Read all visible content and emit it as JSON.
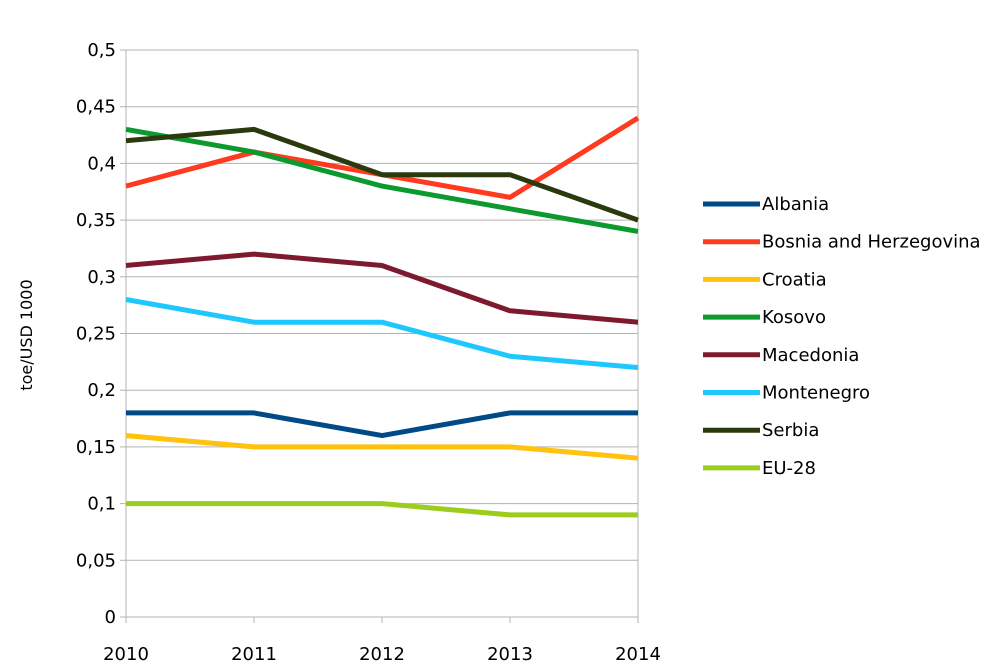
{
  "chart_data": {
    "type": "line",
    "title": "",
    "xlabel": "",
    "ylabel": "toe/USD 1000",
    "ylim": [
      0,
      0.5
    ],
    "ytick_step": 0.05,
    "ytick_labels": [
      "0",
      "0,05",
      "0,1",
      "0,15",
      "0,2",
      "0,25",
      "0,3",
      "0,35",
      "0,4",
      "0,45",
      "0,5"
    ],
    "categories": [
      "2010",
      "2011",
      "2012",
      "2013",
      "2014"
    ],
    "grid": true,
    "legend_position": "right",
    "series": [
      {
        "name": "Albania",
        "color": "#004a87",
        "values": [
          0.18,
          0.18,
          0.16,
          0.18,
          0.18
        ]
      },
      {
        "name": "Bosnia and Herzegovina",
        "color": "#ff3a1e",
        "values": [
          0.38,
          0.41,
          0.39,
          0.37,
          0.44
        ]
      },
      {
        "name": "Croatia",
        "color": "#ffc20e",
        "values": [
          0.16,
          0.15,
          0.15,
          0.15,
          0.14
        ]
      },
      {
        "name": "Kosovo",
        "color": "#0c9a2e",
        "values": [
          0.43,
          0.41,
          0.38,
          0.36,
          0.34
        ]
      },
      {
        "name": "Macedonia",
        "color": "#7d1a2e",
        "values": [
          0.31,
          0.32,
          0.31,
          0.27,
          0.26
        ]
      },
      {
        "name": "Montenegro",
        "color": "#1ec8ff",
        "values": [
          0.28,
          0.26,
          0.26,
          0.23,
          0.22
        ]
      },
      {
        "name": "Serbia",
        "color": "#2b3a0e",
        "values": [
          0.42,
          0.43,
          0.39,
          0.39,
          0.35
        ]
      },
      {
        "name": "EU-28",
        "color": "#9ccd1e",
        "values": [
          0.1,
          0.1,
          0.1,
          0.09,
          0.09
        ]
      }
    ]
  }
}
